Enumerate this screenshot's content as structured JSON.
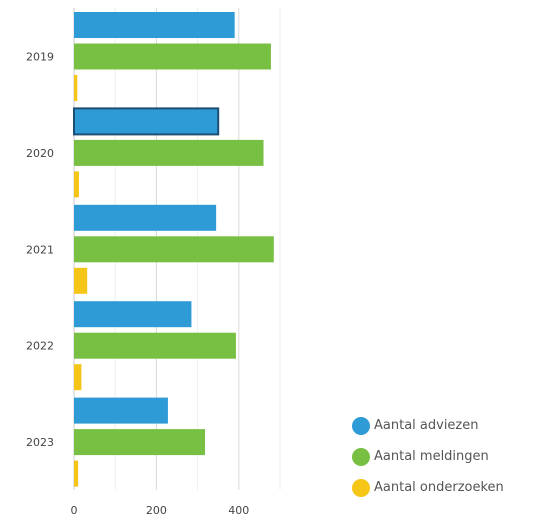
{
  "chart_data": {
    "type": "bar",
    "orientation": "horizontal",
    "categories": [
      "2019",
      "2020",
      "2021",
      "2022",
      "2023"
    ],
    "series": [
      {
        "name": "Aantal adviezen",
        "color": "#2f9bd6",
        "values": [
          390,
          350,
          345,
          285,
          228
        ]
      },
      {
        "name": "Aantal meldingen",
        "color": "#78c043",
        "values": [
          478,
          460,
          485,
          393,
          318
        ]
      },
      {
        "name": "Aantal onderzoeken",
        "color": "#f5c518",
        "values": [
          8,
          12,
          32,
          18,
          10
        ]
      }
    ],
    "xlim": [
      0,
      500
    ],
    "xticks": [
      0,
      200,
      400
    ],
    "grid": true,
    "legend_position": "bottom-right",
    "highlighted": {
      "series": 0,
      "category": 1
    }
  }
}
